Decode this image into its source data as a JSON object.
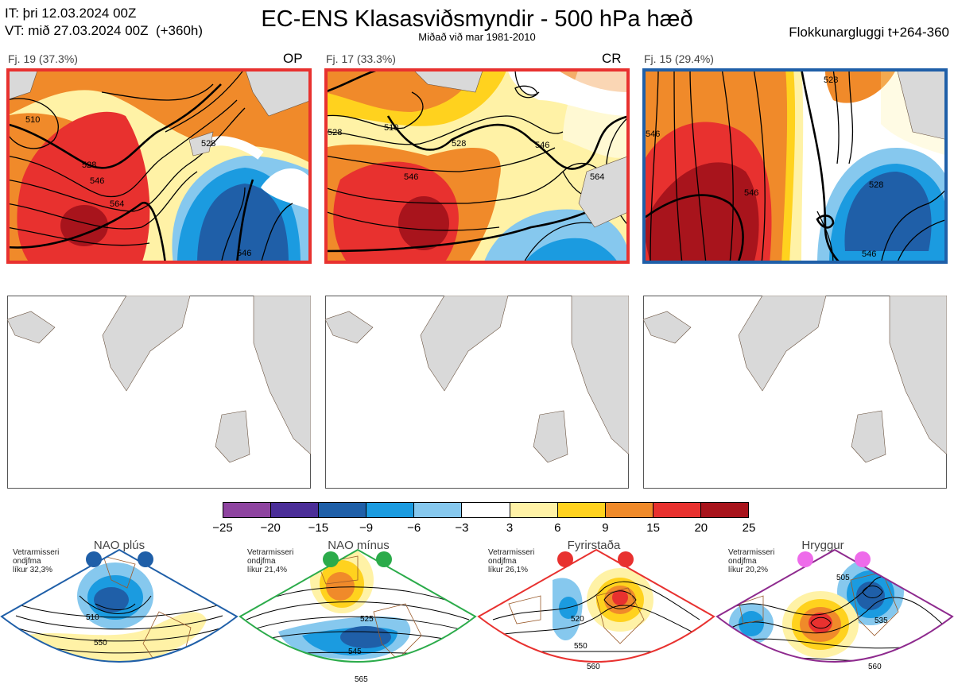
{
  "header": {
    "it_line": "IT: þri 12.03.2024 00Z",
    "vt_line": "VT: mið 27.03.2024 00Z  (+360h)",
    "title": "EC-ENS Klasasviðsmyndir - 500 hPa hæð",
    "subtitle": "Miðað við mar 1981-2010",
    "window": "Flokkunargluggi t+264-360"
  },
  "clusters": [
    {
      "label": "Fj. 19 (37.3%)",
      "tag": "OP",
      "border_color": "#e8312f",
      "contour_labels": [
        "510",
        "528",
        "528",
        "546",
        "564",
        "546",
        "564"
      ]
    },
    {
      "label": "Fj. 17 (33.3%)",
      "tag": "CR",
      "border_color": "#e8312f",
      "contour_labels": [
        "510",
        "528",
        "528",
        "546",
        "546",
        "564"
      ]
    },
    {
      "label": "Fj. 15 (29.4%)",
      "tag": "",
      "border_color": "#1f5fa8",
      "contour_labels": [
        "546",
        "528",
        "546",
        "528",
        "546"
      ]
    }
  ],
  "colorbar": {
    "ticks": [
      "−25",
      "−20",
      "−15",
      "−9",
      "−6",
      "−3",
      "3",
      "6",
      "9",
      "15",
      "20",
      "25"
    ],
    "colors": [
      "#8e44a0",
      "#4b2e98",
      "#1f5fa8",
      "#1b9be0",
      "#86c8ee",
      "#ffffff",
      "#fff2a6",
      "#ffd21e",
      "#f08a2a",
      "#e8312f",
      "#a8141c"
    ]
  },
  "regimes": [
    {
      "name": "NAO plús",
      "prob": "Vetrarmisseri\nondjfma\nlíkur 32,3%",
      "color": "#1f5fa8",
      "dot_color": "#1f5fa8",
      "contour_labels": [
        "510",
        "550"
      ]
    },
    {
      "name": "NAO mínus",
      "prob": "Vetrarmisseri\nondjfma\nlíkur 21,4%",
      "color": "#2bab4a",
      "dot_color": "#2bab4a",
      "contour_labels": [
        "525",
        "545",
        "565"
      ]
    },
    {
      "name": "Fyrirstaða",
      "prob": "Vetrarmisseri\nondjfma\nlíkur 26,1%",
      "color": "#e8312f",
      "dot_color": "#e8312f",
      "contour_labels": [
        "520",
        "550",
        "560"
      ]
    },
    {
      "name": "Hryggur",
      "prob": "Vetrarmisseri\nondjfma\nlíkur 20,2%",
      "color": "#8e2a8e",
      "dot_color": "#ee6bea",
      "contour_labels": [
        "505",
        "535",
        "560"
      ]
    }
  ]
}
